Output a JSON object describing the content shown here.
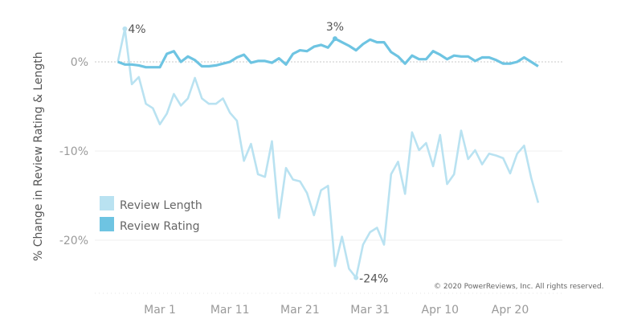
{
  "chart_data": {
    "type": "line",
    "title": "",
    "xlabel": "",
    "ylabel": "% Change in Review Rating & Length",
    "x_unit": "days relative to Mar 1",
    "x": [
      -6,
      -5,
      -4,
      -3,
      -2,
      -1,
      0,
      1,
      2,
      3,
      4,
      5,
      6,
      7,
      8,
      9,
      10,
      11,
      12,
      13,
      14,
      15,
      16,
      17,
      18,
      19,
      20,
      21,
      22,
      23,
      24,
      25,
      26,
      27,
      28,
      29,
      30,
      31,
      32,
      33,
      34,
      35,
      36,
      37,
      38,
      39,
      40,
      41,
      42,
      43,
      44,
      45,
      46,
      47,
      48,
      49,
      50,
      51,
      52,
      53,
      54
    ],
    "series": [
      {
        "name": "Review Length",
        "color": "#b9e2f1",
        "values": [
          0,
          3.7,
          -2.5,
          -1.7,
          -4.7,
          -5.2,
          -7.0,
          -5.8,
          -3.6,
          -4.9,
          -4.1,
          -1.8,
          -4.1,
          -4.7,
          -4.7,
          -4.1,
          -5.7,
          -6.6,
          -11.1,
          -9.2,
          -12.6,
          -12.9,
          -8.9,
          -17.5,
          -11.9,
          -13.2,
          -13.4,
          -14.7,
          -17.2,
          -14.4,
          -13.9,
          -22.9,
          -19.6,
          -23.2,
          -24.2,
          -20.5,
          -19.1,
          -18.6,
          -20.5,
          -12.6,
          -11.2,
          -14.8,
          -7.9,
          -9.9,
          -9.1,
          -11.7,
          -8.2,
          -13.7,
          -12.6,
          -7.7,
          -10.9,
          -9.9,
          -11.5,
          -10.3,
          -10.5,
          -10.8,
          -12.5,
          -10.3,
          -9.4,
          -13.0,
          -15.8
        ]
      },
      {
        "name": "Review Rating",
        "color": "#6ec4e2",
        "values": [
          0,
          -0.3,
          -0.3,
          -0.4,
          -0.6,
          -0.6,
          -0.6,
          0.9,
          1.2,
          0,
          0.6,
          0.2,
          -0.5,
          -0.5,
          -0.4,
          -0.2,
          0,
          0.5,
          0.8,
          -0.1,
          0.1,
          0.1,
          -0.1,
          0.4,
          -0.3,
          0.9,
          1.3,
          1.2,
          1.7,
          1.9,
          1.6,
          2.6,
          2.2,
          1.8,
          1.3,
          2.0,
          2.5,
          2.2,
          2.2,
          1.1,
          0.6,
          -0.2,
          0.7,
          0.3,
          0.3,
          1.2,
          0.8,
          0.3,
          0.7,
          0.6,
          0.6,
          0.1,
          0.5,
          0.5,
          0.2,
          -0.2,
          -0.2,
          0,
          0.5,
          0,
          -0.5
        ]
      }
    ],
    "y_ticks": [
      {
        "value": 0,
        "label": "0%"
      },
      {
        "value": -10,
        "label": "-10%"
      },
      {
        "value": -20,
        "label": "-20%"
      }
    ],
    "x_ticks": [
      {
        "value": 0,
        "label": "Mar 1"
      },
      {
        "value": 10,
        "label": "Mar 11"
      },
      {
        "value": 20,
        "label": "Mar 21"
      },
      {
        "value": 30,
        "label": "Mar 31"
      },
      {
        "value": 40,
        "label": "Apr 10"
      },
      {
        "value": 50,
        "label": "Apr 20"
      }
    ],
    "ylim": [
      -25,
      4
    ],
    "grid": true,
    "legend": {
      "placement": "bottom-left",
      "entries": [
        "Review Length",
        "Review Rating"
      ]
    },
    "annotations": [
      {
        "series": 0,
        "x": -5,
        "label": "4%"
      },
      {
        "series": 1,
        "x": 25,
        "label": "3%"
      },
      {
        "series": 0,
        "x": 28,
        "label": "-24%"
      }
    ]
  },
  "copyright": "© 2020 PowerReviews, Inc. All rights reserved."
}
